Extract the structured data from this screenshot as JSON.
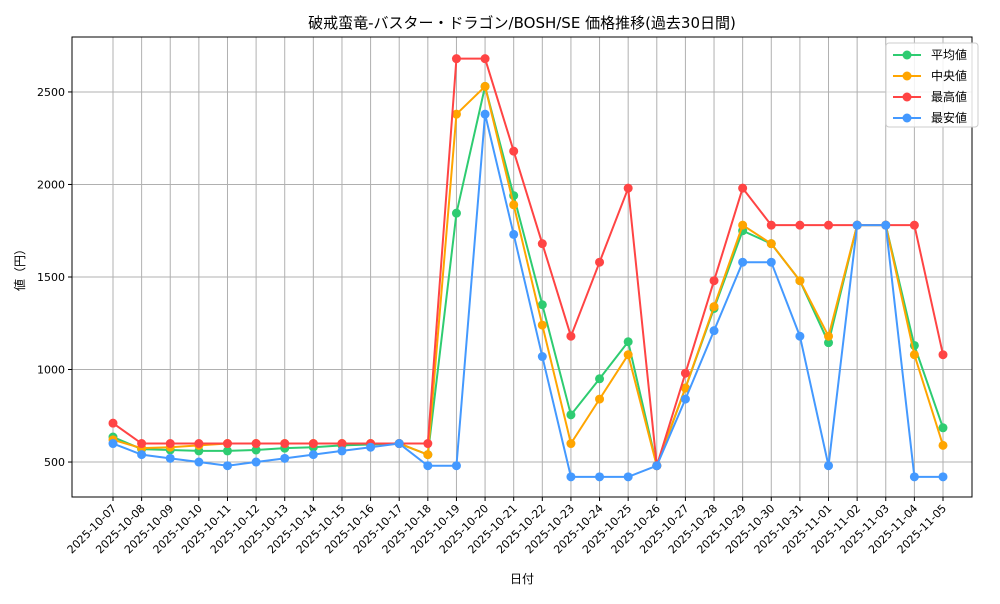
{
  "chart_data": {
    "type": "line",
    "title": "破戒蛮竜-バスター・ドラゴン/BOSH/SE 価格推移(過去30日間)",
    "xlabel": "日付",
    "ylabel": "値（円）",
    "ylim": [
      311,
      2797
    ],
    "yticks": [
      500,
      1000,
      1500,
      2000,
      2500
    ],
    "grid": true,
    "legend_position": "top-right",
    "x": [
      "2025-10-07",
      "2025-10-08",
      "2025-10-09",
      "2025-10-10",
      "2025-10-11",
      "2025-10-12",
      "2025-10-13",
      "2025-10-14",
      "2025-10-15",
      "2025-10-16",
      "2025-10-17",
      "2025-10-18",
      "2025-10-19",
      "2025-10-20",
      "2025-10-21",
      "2025-10-22",
      "2025-10-23",
      "2025-10-24",
      "2025-10-25",
      "2025-10-26",
      "2025-10-27",
      "2025-10-28",
      "2025-10-29",
      "2025-10-30",
      "2025-10-31",
      "2025-11-01",
      "2025-11-02",
      "2025-11-03",
      "2025-11-04",
      "2025-11-05"
    ],
    "series": [
      {
        "name": "平均値",
        "color": "#2ecc71",
        "values": [
          635,
          570,
          565,
          560,
          560,
          565,
          575,
          580,
          590,
          595,
          600,
          540,
          1845,
          2530,
          1940,
          1350,
          755,
          950,
          1150,
          480,
          900,
          1330,
          1750,
          1680,
          1480,
          1145,
          1780,
          1780,
          1130,
          685
        ]
      },
      {
        "name": "中央値",
        "color": "#ffa500",
        "values": [
          620,
          575,
          580,
          590,
          600,
          600,
          600,
          600,
          600,
          600,
          600,
          540,
          2380,
          2530,
          1890,
          1240,
          600,
          840,
          1080,
          480,
          900,
          1340,
          1780,
          1680,
          1480,
          1180,
          1780,
          1780,
          1080,
          590
        ]
      },
      {
        "name": "最高値",
        "color": "#ff4444",
        "values": [
          710,
          600,
          600,
          600,
          600,
          600,
          600,
          600,
          600,
          600,
          600,
          600,
          2680,
          2680,
          2180,
          1680,
          1180,
          1580,
          1980,
          480,
          980,
          1480,
          1980,
          1780,
          1780,
          1780,
          1780,
          1780,
          1780,
          1080
        ]
      },
      {
        "name": "最安値",
        "color": "#4499ff",
        "values": [
          600,
          540,
          520,
          500,
          480,
          500,
          520,
          540,
          560,
          580,
          600,
          480,
          480,
          2380,
          1730,
          1070,
          420,
          420,
          420,
          480,
          840,
          1210,
          1580,
          1580,
          1180,
          480,
          1780,
          1780,
          420,
          420
        ]
      }
    ]
  }
}
